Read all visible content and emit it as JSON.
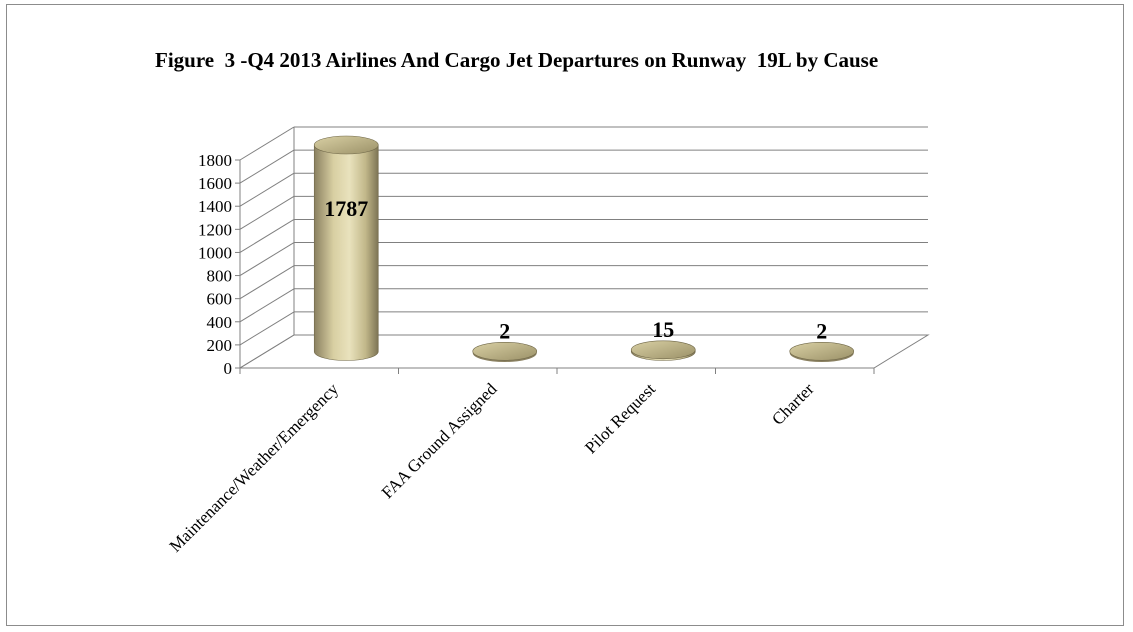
{
  "chart_data": {
    "type": "bar",
    "style": "3d-cylinder",
    "title": "Figure  3 -Q4 2013 Airlines And Cargo Jet Departures on Runway  19L by Cause",
    "xlabel": "",
    "ylabel": "",
    "categories": [
      "Maintenance/Weather/Emergency",
      "FAA Ground Assigned",
      "Pilot Request",
      "Charter"
    ],
    "series": [
      {
        "values": [
          1787,
          2,
          15,
          2
        ],
        "data_labels": [
          "1787",
          "2",
          "15",
          "2"
        ]
      }
    ],
    "ylim": [
      0,
      1800
    ],
    "yticks": [
      0,
      200,
      400,
      600,
      800,
      1000,
      1200,
      1400,
      1600,
      1800
    ],
    "grid": true,
    "legend": "none",
    "colors": {
      "bar": "#c9bf8f",
      "bar_dark": "#7a7150",
      "bar_light": "#efe9c8",
      "grid": "#808080"
    }
  }
}
